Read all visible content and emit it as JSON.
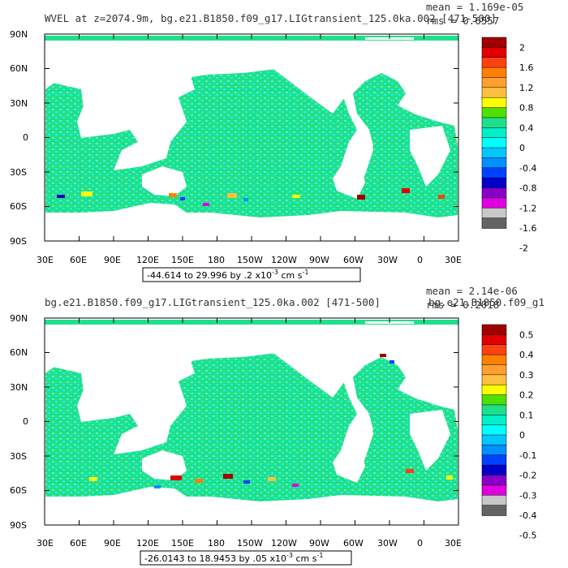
{
  "colors": {
    "ocean_base": "#1ee08c",
    "ocean_light": "#5ef0b0",
    "ocean_cyan": "#1ef0f0",
    "land": "#ffffff",
    "bar_order": [
      "#a00000",
      "#e00000",
      "#ff4010",
      "#ff8000",
      "#ffa030",
      "#ffc040",
      "#ffff00",
      "#50e000",
      "#1ee08c",
      "#00f0c8",
      "#00ffff",
      "#00c8ff",
      "#0090ff",
      "#0040ff",
      "#0000c8",
      "#8800c8",
      "#e000e0",
      "#c8c8c8",
      "#646464"
    ]
  },
  "panels": [
    {
      "title_left": "WVEL at z=2074.9m, bg.e21.B1850.f09_g17.LIGtransient_125.0ka.002 [471-500]",
      "title_right": "",
      "mean_text": "mean = 1.169e-05",
      "rms_text": "rms = 0.6557",
      "range_text": "-44.614 to 29.996 by .2 x10",
      "range_exp": "-3",
      "range_unit": " cm s",
      "range_unit_exp": "-1",
      "lat_labels": [
        "90N",
        "60N",
        "30N",
        "0",
        "30S",
        "60S",
        "90S"
      ],
      "lon_labels": [
        "30E",
        "60E",
        "90E",
        "120E",
        "150E",
        "180",
        "150W",
        "120W",
        "90W",
        "60W",
        "30W",
        "0",
        "30E"
      ],
      "colorbar_labels": [
        "2",
        "1.6",
        "1.2",
        "0.8",
        "0.4",
        "0",
        "-0.4",
        "-0.8",
        "-1.2",
        "-1.6",
        "-2"
      ]
    },
    {
      "title_left": "bg.e21.B1850.f09_g17.LIGtransient_125.0ka.002 [471-500]",
      "title_right": "bg.e21.B1850.f09_g1",
      "mean_text": "mean = 2.14e-06",
      "rms_text": "rms = 0.2018",
      "range_text": "-26.0143 to 18.9453 by .05 x10",
      "range_exp": "-3",
      "range_unit": " cm s",
      "range_unit_exp": "-1",
      "lat_labels": [
        "90N",
        "60N",
        "30N",
        "0",
        "30S",
        "60S",
        "90S"
      ],
      "lon_labels": [
        "30E",
        "60E",
        "90E",
        "120E",
        "150E",
        "180",
        "150W",
        "120W",
        "90W",
        "60W",
        "30W",
        "0",
        "30E"
      ],
      "colorbar_labels": [
        "0.5",
        "0.4",
        "0.3",
        "0.2",
        "0.1",
        "0",
        "-0.1",
        "-0.2",
        "-0.3",
        "-0.4",
        "-0.5"
      ]
    }
  ]
}
